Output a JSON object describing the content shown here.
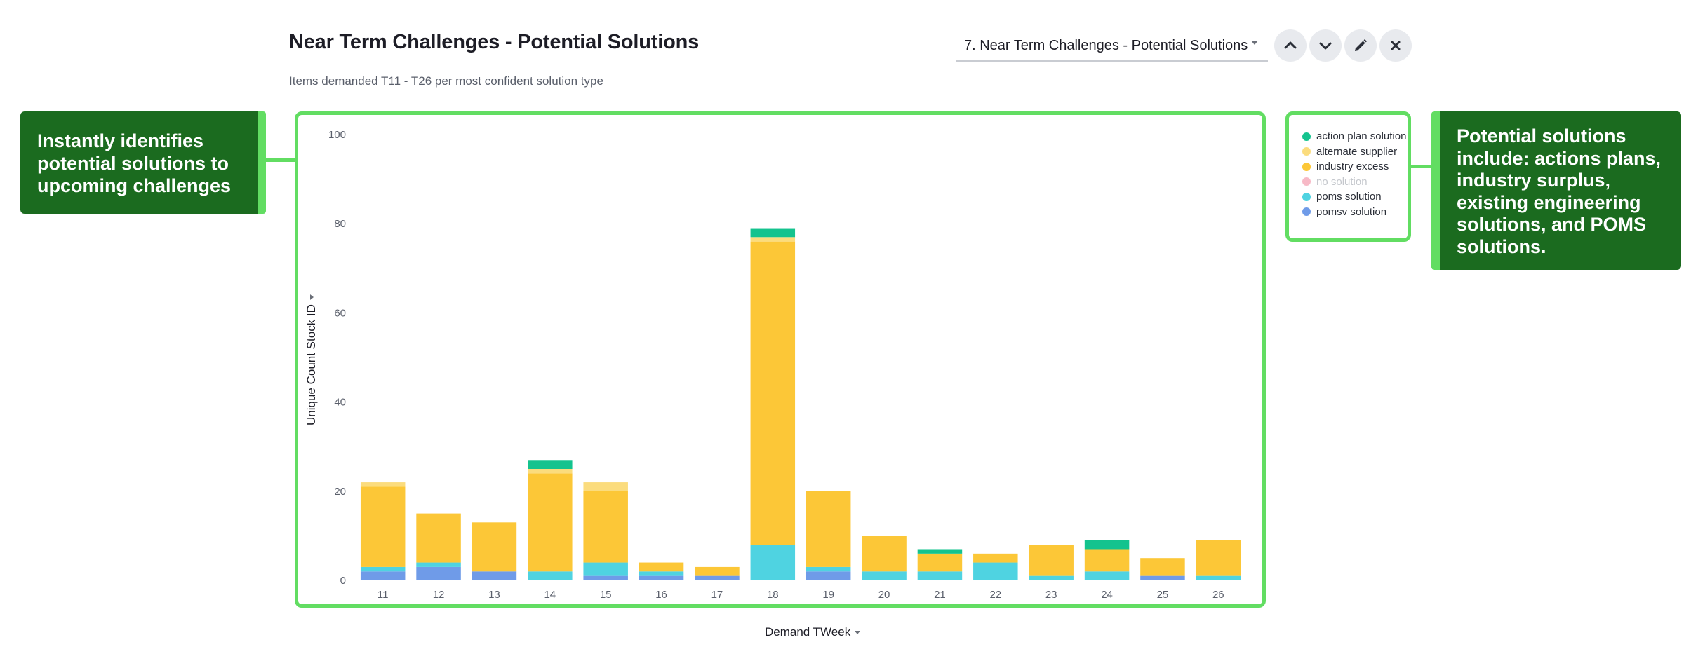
{
  "header": {
    "title": "Near Term Challenges - Potential Solutions",
    "subtitle": "Items demanded T11 - T26 per most confident solution type",
    "viz_select_value": "7. Near Term Challenges - Potential Solutions"
  },
  "toolbar": {
    "move_up_icon": "chevron-up-icon",
    "move_down_icon": "chevron-down-icon",
    "edit_icon": "pencil-icon",
    "close_icon": "close-icon"
  },
  "callouts": {
    "left": "Instantly identifies potential solutions to upcoming challenges",
    "right": "Potential solutions include: actions plans, industry surplus, existing engineering solutions, and POMS solutions."
  },
  "colors": {
    "callout_bg": "#1b6b1f",
    "highlight": "#62dd62"
  },
  "chart_data": {
    "type": "bar",
    "stacked": true,
    "xlabel": "Demand TWeek",
    "ylabel": "Unique Count Stock ID",
    "ylim": [
      0,
      100
    ],
    "yticks": [
      0,
      20,
      40,
      60,
      80,
      100
    ],
    "grid": false,
    "legend_position": "right",
    "categories": [
      "11",
      "12",
      "13",
      "14",
      "15",
      "16",
      "17",
      "18",
      "19",
      "20",
      "21",
      "22",
      "23",
      "24",
      "25",
      "26"
    ],
    "series": [
      {
        "name": "pomsv solution",
        "color": "#6f9be8",
        "values": [
          2,
          3,
          2,
          0,
          1,
          1,
          1,
          0,
          2,
          0,
          0,
          0,
          0,
          0,
          1,
          0
        ]
      },
      {
        "name": "poms solution",
        "color": "#4fd3e1",
        "values": [
          1,
          1,
          0,
          2,
          3,
          1,
          0,
          8,
          1,
          2,
          2,
          4,
          1,
          2,
          0,
          1
        ]
      },
      {
        "name": "no solution",
        "color": "#f7b9c6",
        "values": [
          0,
          0,
          0,
          0,
          0,
          0,
          0,
          0,
          0,
          0,
          0,
          0,
          0,
          0,
          0,
          0
        ]
      },
      {
        "name": "industry excess",
        "color": "#fcc737",
        "values": [
          18,
          11,
          11,
          22,
          16,
          2,
          2,
          68,
          17,
          8,
          4,
          2,
          7,
          5,
          4,
          8
        ]
      },
      {
        "name": "alternate supplier",
        "color": "#fbdc7d",
        "values": [
          1,
          0,
          0,
          1,
          2,
          0,
          0,
          1,
          0,
          0,
          0,
          0,
          0,
          0,
          0,
          0
        ]
      },
      {
        "name": "action plan solution",
        "color": "#14c38e",
        "values": [
          0,
          0,
          0,
          2,
          0,
          0,
          0,
          2,
          0,
          0,
          1,
          0,
          0,
          2,
          0,
          0
        ]
      }
    ],
    "legend": [
      {
        "name": "action plan solution",
        "color": "#14c38e",
        "muted": false
      },
      {
        "name": "alternate supplier",
        "color": "#fbdc7d",
        "muted": false
      },
      {
        "name": "industry excess",
        "color": "#fcc737",
        "muted": false
      },
      {
        "name": "no solution",
        "color": "#f7b9c6",
        "muted": true
      },
      {
        "name": "poms solution",
        "color": "#4fd3e1",
        "muted": false
      },
      {
        "name": "pomsv solution",
        "color": "#6f9be8",
        "muted": false
      }
    ]
  }
}
